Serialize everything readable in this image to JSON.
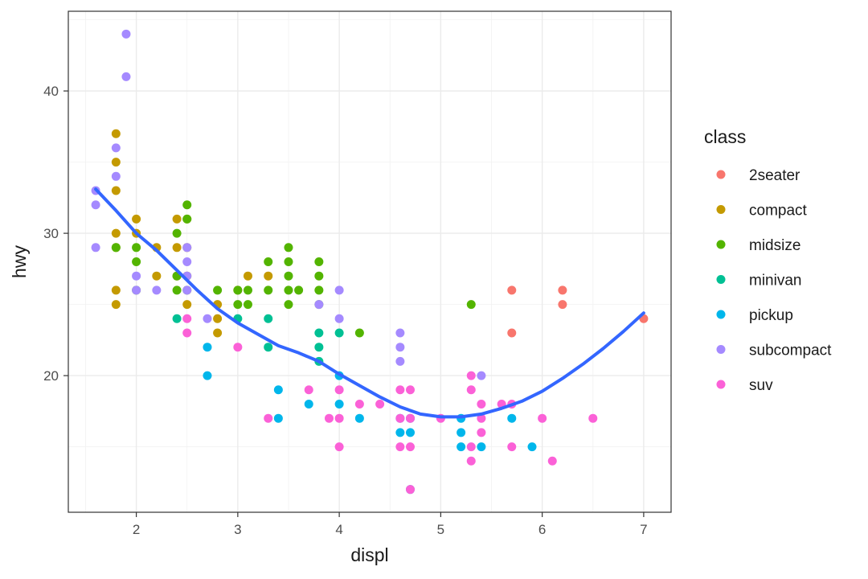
{
  "chart_data": {
    "type": "scatter",
    "title": "",
    "xlabel": "displ",
    "ylabel": "hwy",
    "xlim": [
      1.33,
      7.27
    ],
    "ylim": [
      10.4,
      45.6
    ],
    "xticks": [
      2,
      3,
      4,
      5,
      6,
      7
    ],
    "yticks": [
      20,
      30,
      40
    ],
    "grid": true,
    "legend": {
      "title": "class",
      "placement": "right"
    },
    "colors": {
      "2seater": "#F8766D",
      "compact": "#C49A00",
      "midsize": "#53B400",
      "minivan": "#00C094",
      "pickup": "#00B6EB",
      "subcompact": "#A58AFF",
      "suv": "#FB61D7"
    },
    "trend_color": "#3366FF",
    "series": [
      {
        "name": "2seater",
        "points": [
          [
            5.7,
            26
          ],
          [
            5.7,
            23
          ],
          [
            6.2,
            26
          ],
          [
            6.2,
            25
          ],
          [
            7.0,
            24
          ]
        ]
      },
      {
        "name": "compact",
        "points": [
          [
            1.8,
            37
          ],
          [
            1.8,
            35
          ],
          [
            1.8,
            33
          ],
          [
            1.8,
            30
          ],
          [
            1.8,
            29
          ],
          [
            1.8,
            26
          ],
          [
            1.8,
            25
          ],
          [
            2.0,
            31
          ],
          [
            2.0,
            30
          ],
          [
            2.2,
            29
          ],
          [
            2.2,
            27
          ],
          [
            2.4,
            31
          ],
          [
            2.4,
            29
          ],
          [
            2.4,
            27
          ],
          [
            2.5,
            31
          ],
          [
            2.5,
            29
          ],
          [
            2.5,
            27
          ],
          [
            2.5,
            25
          ],
          [
            2.8,
            25
          ],
          [
            2.8,
            24
          ],
          [
            2.8,
            23
          ],
          [
            3.0,
            26
          ],
          [
            3.1,
            27
          ],
          [
            3.3,
            27
          ]
        ]
      },
      {
        "name": "midsize",
        "points": [
          [
            1.8,
            29
          ],
          [
            2.0,
            29
          ],
          [
            2.0,
            28
          ],
          [
            2.0,
            26
          ],
          [
            2.4,
            30
          ],
          [
            2.4,
            27
          ],
          [
            2.4,
            26
          ],
          [
            2.5,
            32
          ],
          [
            2.5,
            31
          ],
          [
            2.5,
            26
          ],
          [
            2.8,
            26
          ],
          [
            3.0,
            26
          ],
          [
            3.0,
            25
          ],
          [
            3.1,
            26
          ],
          [
            3.1,
            25
          ],
          [
            3.3,
            28
          ],
          [
            3.3,
            26
          ],
          [
            3.5,
            29
          ],
          [
            3.5,
            28
          ],
          [
            3.5,
            27
          ],
          [
            3.5,
            26
          ],
          [
            3.5,
            25
          ],
          [
            3.6,
            26
          ],
          [
            3.8,
            28
          ],
          [
            3.8,
            27
          ],
          [
            3.8,
            26
          ],
          [
            3.8,
            25
          ],
          [
            4.2,
            23
          ],
          [
            5.3,
            25
          ]
        ]
      },
      {
        "name": "minivan",
        "points": [
          [
            2.4,
            24
          ],
          [
            3.0,
            24
          ],
          [
            3.3,
            24
          ],
          [
            3.3,
            22
          ],
          [
            3.8,
            23
          ],
          [
            3.8,
            22
          ],
          [
            3.8,
            21
          ],
          [
            4.0,
            23
          ]
        ]
      },
      {
        "name": "pickup",
        "points": [
          [
            2.7,
            22
          ],
          [
            2.7,
            20
          ],
          [
            3.4,
            19
          ],
          [
            3.4,
            17
          ],
          [
            3.7,
            18
          ],
          [
            4.0,
            20
          ],
          [
            4.0,
            18
          ],
          [
            4.2,
            17
          ],
          [
            4.6,
            17
          ],
          [
            4.6,
            16
          ],
          [
            4.7,
            16
          ],
          [
            4.7,
            17
          ],
          [
            4.7,
            12
          ],
          [
            5.2,
            17
          ],
          [
            5.2,
            16
          ],
          [
            5.2,
            15
          ],
          [
            5.4,
            15
          ],
          [
            5.7,
            17
          ],
          [
            5.9,
            15
          ]
        ]
      },
      {
        "name": "subcompact",
        "points": [
          [
            1.6,
            33
          ],
          [
            1.6,
            32
          ],
          [
            1.6,
            29
          ],
          [
            1.8,
            36
          ],
          [
            1.8,
            34
          ],
          [
            1.9,
            44
          ],
          [
            1.9,
            41
          ],
          [
            2.0,
            27
          ],
          [
            2.0,
            26
          ],
          [
            2.2,
            26
          ],
          [
            2.5,
            29
          ],
          [
            2.5,
            28
          ],
          [
            2.5,
            27
          ],
          [
            2.5,
            26
          ],
          [
            2.7,
            24
          ],
          [
            3.8,
            25
          ],
          [
            4.0,
            26
          ],
          [
            4.0,
            24
          ],
          [
            4.6,
            23
          ],
          [
            4.6,
            22
          ],
          [
            4.6,
            21
          ],
          [
            5.4,
            20
          ]
        ]
      },
      {
        "name": "suv",
        "points": [
          [
            2.5,
            24
          ],
          [
            2.5,
            23
          ],
          [
            3.0,
            22
          ],
          [
            3.3,
            17
          ],
          [
            3.7,
            19
          ],
          [
            3.9,
            17
          ],
          [
            4.0,
            19
          ],
          [
            4.0,
            17
          ],
          [
            4.0,
            15
          ],
          [
            4.2,
            18
          ],
          [
            4.4,
            18
          ],
          [
            4.6,
            19
          ],
          [
            4.6,
            17
          ],
          [
            4.6,
            15
          ],
          [
            4.7,
            19
          ],
          [
            4.7,
            17
          ],
          [
            4.7,
            15
          ],
          [
            4.7,
            12
          ],
          [
            5.0,
            17
          ],
          [
            5.3,
            20
          ],
          [
            5.3,
            19
          ],
          [
            5.3,
            15
          ],
          [
            5.3,
            14
          ],
          [
            5.4,
            18
          ],
          [
            5.4,
            17
          ],
          [
            5.4,
            16
          ],
          [
            5.6,
            18
          ],
          [
            5.7,
            18
          ],
          [
            5.7,
            15
          ],
          [
            6.0,
            17
          ],
          [
            6.1,
            14
          ],
          [
            6.5,
            17
          ]
        ]
      }
    ],
    "trend": {
      "x": [
        1.6,
        1.8,
        2.0,
        2.2,
        2.4,
        2.6,
        2.8,
        3.0,
        3.2,
        3.4,
        3.6,
        3.8,
        4.0,
        4.2,
        4.4,
        4.6,
        4.8,
        5.0,
        5.2,
        5.4,
        5.6,
        5.8,
        6.0,
        6.2,
        6.4,
        6.6,
        6.8,
        7.0
      ],
      "y": [
        33.1,
        31.6,
        30.0,
        28.8,
        27.4,
        26.0,
        24.7,
        23.7,
        22.9,
        22.1,
        21.6,
        21.0,
        20.1,
        19.3,
        18.5,
        17.8,
        17.3,
        17.1,
        17.1,
        17.3,
        17.7,
        18.2,
        18.9,
        19.8,
        20.8,
        21.9,
        23.1,
        24.4
      ]
    }
  }
}
